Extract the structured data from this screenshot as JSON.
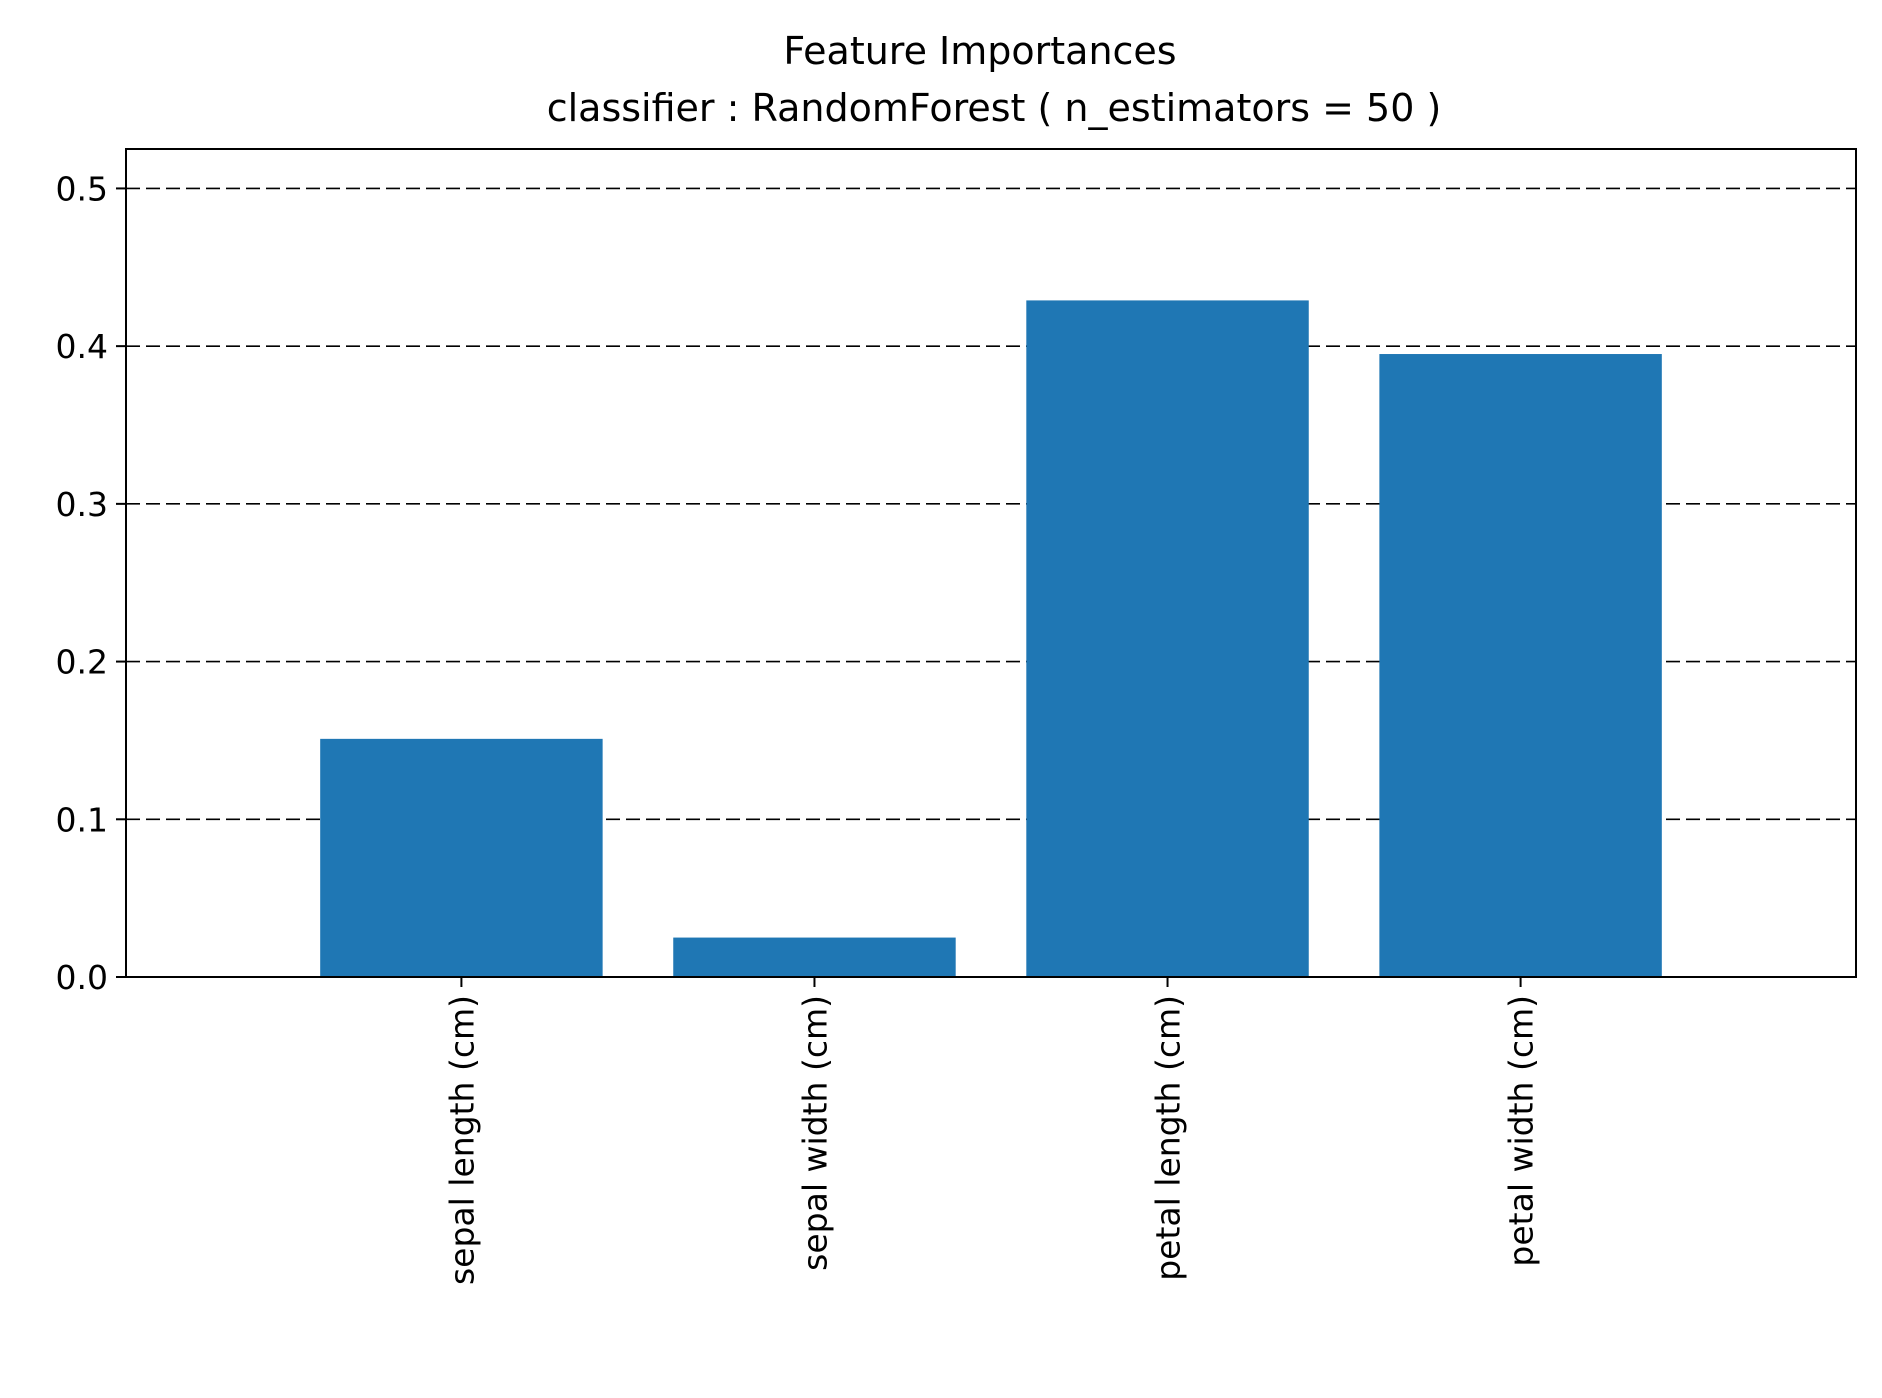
{
  "chart_data": {
    "type": "bar",
    "title": "Feature Importances",
    "subtitle": "classifier : RandomForest ( n_estimators = 50 )",
    "xlabel": "",
    "ylabel": "",
    "categories": [
      "sepal length (cm)",
      "sepal width (cm)",
      "petal length (cm)",
      "petal width (cm)"
    ],
    "values": [
      0.151,
      0.025,
      0.429,
      0.395
    ],
    "ylim": [
      0,
      0.525
    ],
    "yticks": [
      0.0,
      0.1,
      0.2,
      0.3,
      0.4,
      0.5
    ],
    "ytick_labels": [
      "0.0",
      "0.1",
      "0.2",
      "0.3",
      "0.4",
      "0.5"
    ],
    "grid": "horizontal dashed lines at y ticks",
    "legend": "none",
    "bar_color": "#1f77b4"
  }
}
